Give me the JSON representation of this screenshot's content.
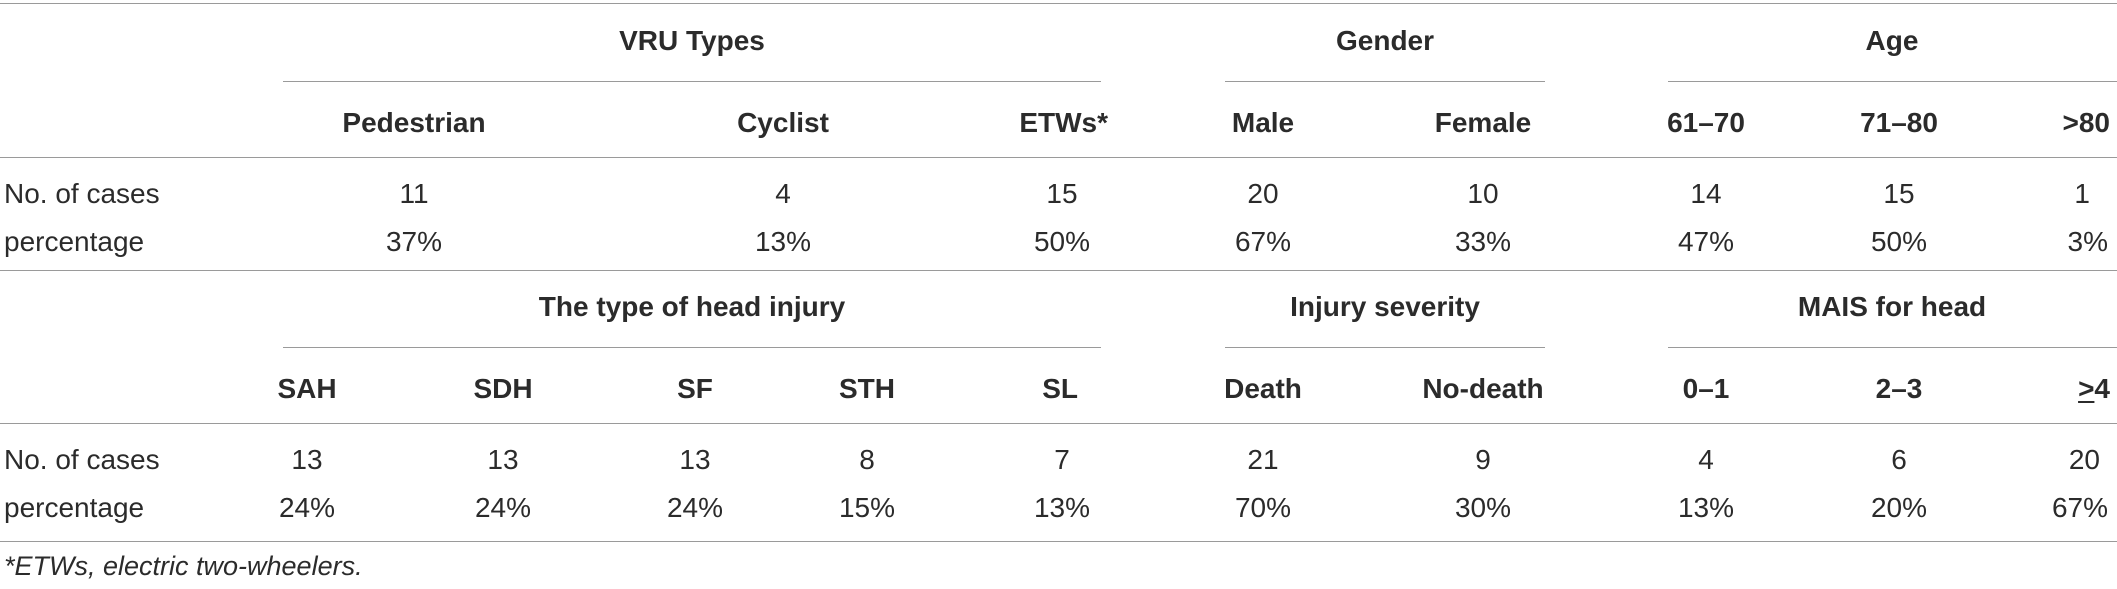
{
  "section1": {
    "groups": {
      "vru": "VRU Types",
      "gender": "Gender",
      "age": "Age"
    },
    "cols": [
      "Pedestrian",
      "Cyclist",
      "ETWs*",
      "Male",
      "Female",
      "61–70",
      "71–80",
      ">80"
    ],
    "rows": [
      {
        "label": "No. of cases",
        "values": [
          "11",
          "4",
          "15",
          "20",
          "10",
          "14",
          "15",
          "1"
        ]
      },
      {
        "label": "percentage",
        "values": [
          "37%",
          "13%",
          "50%",
          "67%",
          "33%",
          "47%",
          "50%",
          "3%"
        ]
      }
    ]
  },
  "section2": {
    "groups": {
      "head_injury": "The type of head injury",
      "severity": "Injury severity",
      "mais": "MAIS for head"
    },
    "cols": [
      "SAH",
      "SDH",
      "SF",
      "STH",
      "SL",
      "Death",
      "No-death",
      "0–1",
      "2–3",
      "4"
    ],
    "rows": [
      {
        "label": "No. of cases",
        "values": [
          "13",
          "13",
          "13",
          "8",
          "7",
          "21",
          "9",
          "4",
          "6",
          "20"
        ]
      },
      {
        "label": "percentage",
        "values": [
          "24%",
          "24%",
          "24%",
          "15%",
          "13%",
          "70%",
          "30%",
          "13%",
          "20%",
          "67%"
        ]
      }
    ]
  },
  "footnote": "*ETWs, electric two-wheelers."
}
